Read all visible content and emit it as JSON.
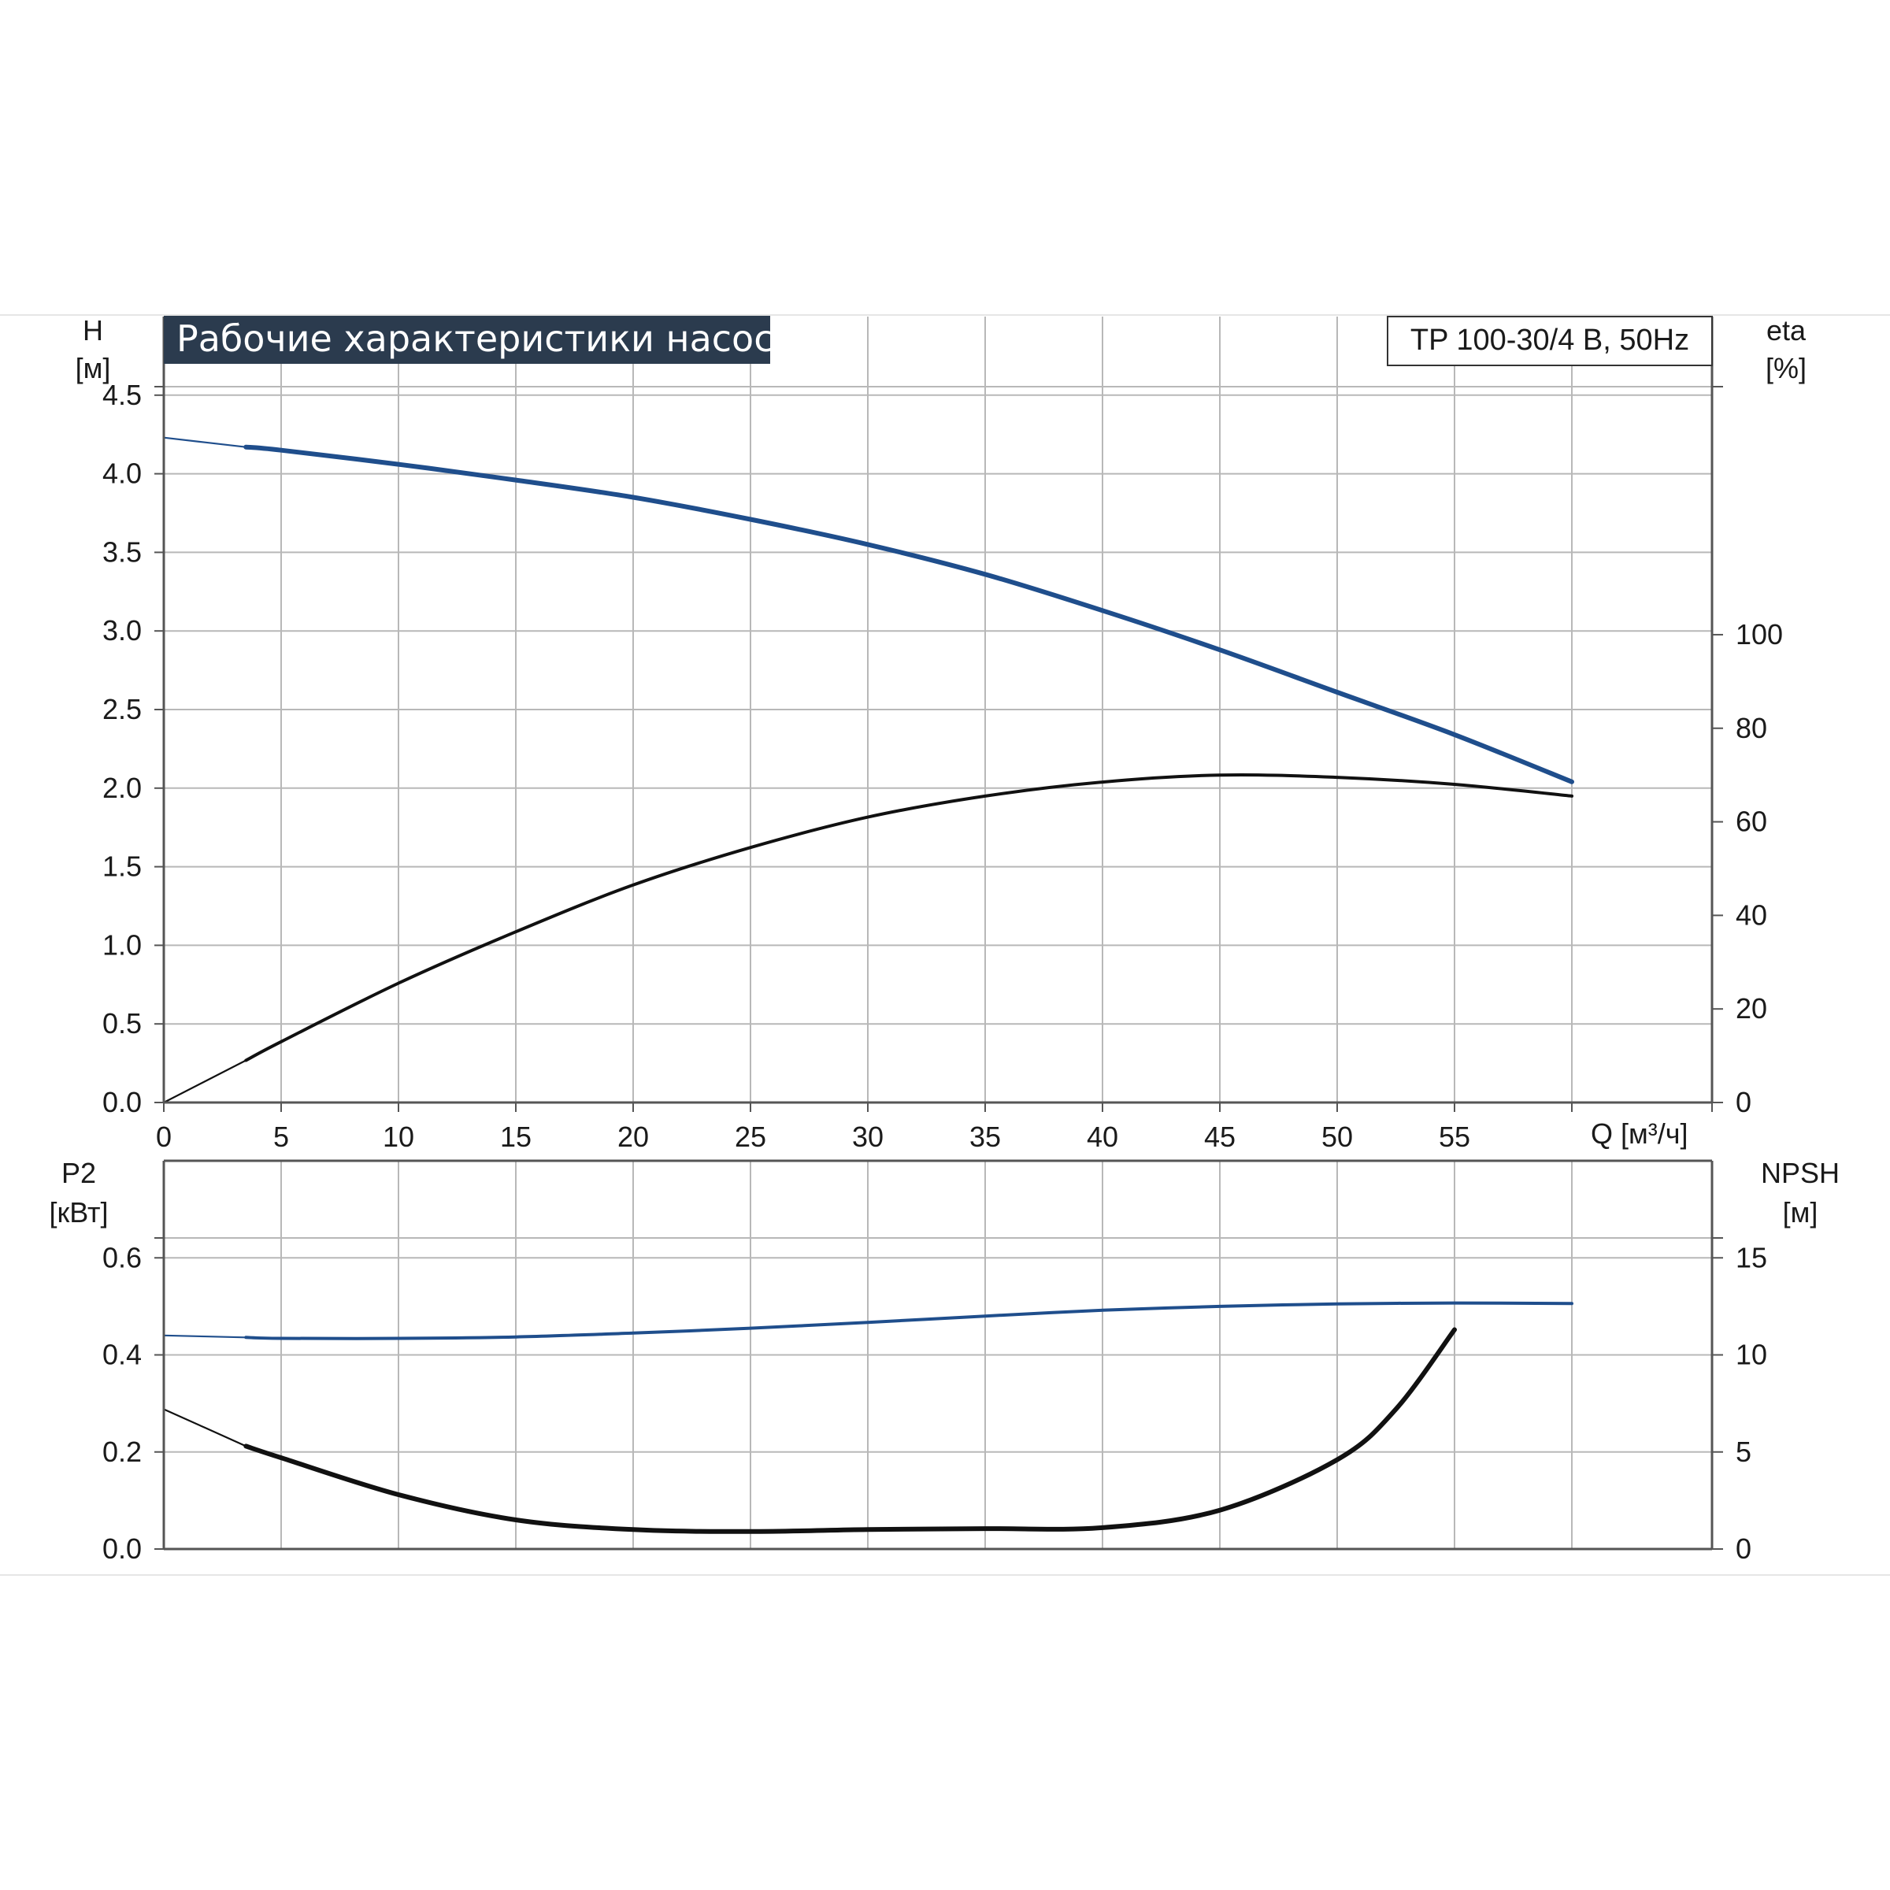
{
  "colors": {
    "blue_curve": "#1f4e8c",
    "black_curve": "#111111",
    "grid": "#b8b8b8",
    "frame": "#555555",
    "title_bg": "#2b3b4e"
  },
  "chart_data": [
    {
      "type": "line",
      "title": "Рабочие характеристики насоса",
      "model": "TP 100-30/4 B, 50Hz",
      "xlabel": "Q [м³/ч]",
      "x_ticks": [
        "0",
        "5",
        "10",
        "15",
        "20",
        "25",
        "30",
        "35",
        "40",
        "45",
        "50",
        "55"
      ],
      "xlim": [
        0,
        66
      ],
      "ylabel_left": {
        "name": "H",
        "unit": "[м]"
      },
      "ylabel_right": {
        "name": "eta",
        "unit": "[%]"
      },
      "y_ticks_left": [
        "0.0",
        "0.5",
        "1.0",
        "1.5",
        "2.0",
        "2.5",
        "3.0",
        "3.5",
        "4.0",
        "4.5"
      ],
      "ylim_left": [
        0,
        5
      ],
      "y_ticks_right": [
        "0",
        "20",
        "40",
        "60",
        "80",
        "100"
      ],
      "ylim_right": [
        0,
        168
      ],
      "grid": true,
      "series": [
        {
          "axis": "left",
          "color": "blue",
          "x": [
            0,
            3.5,
            5,
            10,
            15,
            20,
            25,
            30,
            35,
            40,
            45,
            50,
            55,
            60
          ],
          "y": [
            4.23,
            4.17,
            4.15,
            4.06,
            3.96,
            3.85,
            3.71,
            3.55,
            3.36,
            3.13,
            2.88,
            2.61,
            2.34,
            2.04
          ]
        },
        {
          "axis": "right",
          "color": "black",
          "x": [
            0,
            3.5,
            5,
            10,
            15,
            20,
            25,
            30,
            35,
            40,
            45,
            50,
            55,
            60
          ],
          "y": [
            0,
            9,
            13,
            25.5,
            36.5,
            46.5,
            54.5,
            61,
            65.5,
            68.5,
            70,
            69.5,
            68,
            65.5
          ]
        }
      ]
    },
    {
      "type": "line",
      "xlim": [
        0,
        66
      ],
      "ylabel_left": {
        "name": "P2",
        "unit": "[кВт]"
      },
      "ylabel_right": {
        "name": "NPSH",
        "unit": "[м]"
      },
      "y_ticks_left": [
        "0.0",
        "0.2",
        "0.4",
        "0.6"
      ],
      "ylim_left": [
        0,
        0.8
      ],
      "y_ticks_right": [
        "0",
        "5",
        "10",
        "15"
      ],
      "ylim_right": [
        0,
        20
      ],
      "grid": true,
      "series": [
        {
          "axis": "left",
          "color": "blue",
          "x": [
            0,
            3.5,
            5,
            10,
            15,
            20,
            25,
            30,
            35,
            40,
            45,
            50,
            55,
            60
          ],
          "y": [
            0.44,
            0.436,
            0.434,
            0.434,
            0.437,
            0.445,
            0.455,
            0.467,
            0.48,
            0.492,
            0.5,
            0.505,
            0.507,
            0.506
          ]
        },
        {
          "axis": "right",
          "color": "black",
          "x": [
            0,
            3.5,
            5,
            10,
            15,
            20,
            25,
            30,
            35,
            40,
            45,
            50,
            52.5,
            55
          ],
          "y": [
            7.2,
            5.3,
            4.7,
            2.8,
            1.5,
            1.0,
            0.9,
            1.0,
            1.05,
            1.1,
            2.0,
            4.6,
            7.2,
            11.3
          ]
        }
      ]
    }
  ]
}
